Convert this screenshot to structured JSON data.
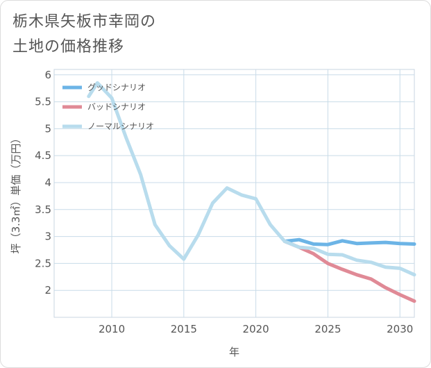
{
  "title": {
    "line1": "栃木県矢板市幸岡の",
    "line2": "土地の価格推移"
  },
  "chart_data": {
    "type": "line",
    "xlabel": "年",
    "ylabel": "坪（3.3㎡）単価（万円）",
    "xlim": [
      2006,
      2031
    ],
    "ylim": [
      1.5,
      6.1
    ],
    "xticks": [
      2010,
      2015,
      2020,
      2025,
      2030
    ],
    "yticks": [
      2,
      2.5,
      3,
      3.5,
      4,
      4.5,
      5,
      5.5,
      6
    ],
    "grid": true,
    "legend_position": "top-left",
    "series": [
      {
        "name": "グッドシナリオ",
        "color": "#6cb4e6",
        "x": [
          2022,
          2023,
          2024,
          2025,
          2026,
          2027,
          2028,
          2029,
          2030,
          2031
        ],
        "y": [
          2.91,
          2.94,
          2.86,
          2.85,
          2.92,
          2.87,
          2.88,
          2.89,
          2.87,
          2.86
        ]
      },
      {
        "name": "バッドシナリオ",
        "color": "#e08a96",
        "x": [
          2022,
          2023,
          2024,
          2025,
          2026,
          2027,
          2028,
          2029,
          2030,
          2031
        ],
        "y": [
          2.91,
          2.8,
          2.68,
          2.5,
          2.39,
          2.29,
          2.21,
          2.05,
          1.92,
          1.8
        ]
      },
      {
        "name": "ノーマルシナリオ",
        "color": "#b8dced",
        "x": [
          2008.4,
          2009,
          2010,
          2011,
          2012,
          2013,
          2014,
          2015,
          2016,
          2017,
          2018,
          2019,
          2020,
          2021,
          2022,
          2023,
          2024,
          2025,
          2026,
          2027,
          2028,
          2029,
          2030,
          2031
        ],
        "y": [
          5.6,
          5.85,
          5.57,
          4.83,
          4.15,
          3.22,
          2.83,
          2.58,
          3.03,
          3.62,
          3.9,
          3.77,
          3.7,
          3.22,
          2.91,
          2.8,
          2.78,
          2.67,
          2.66,
          2.56,
          2.52,
          2.43,
          2.41,
          2.29
        ]
      }
    ]
  }
}
